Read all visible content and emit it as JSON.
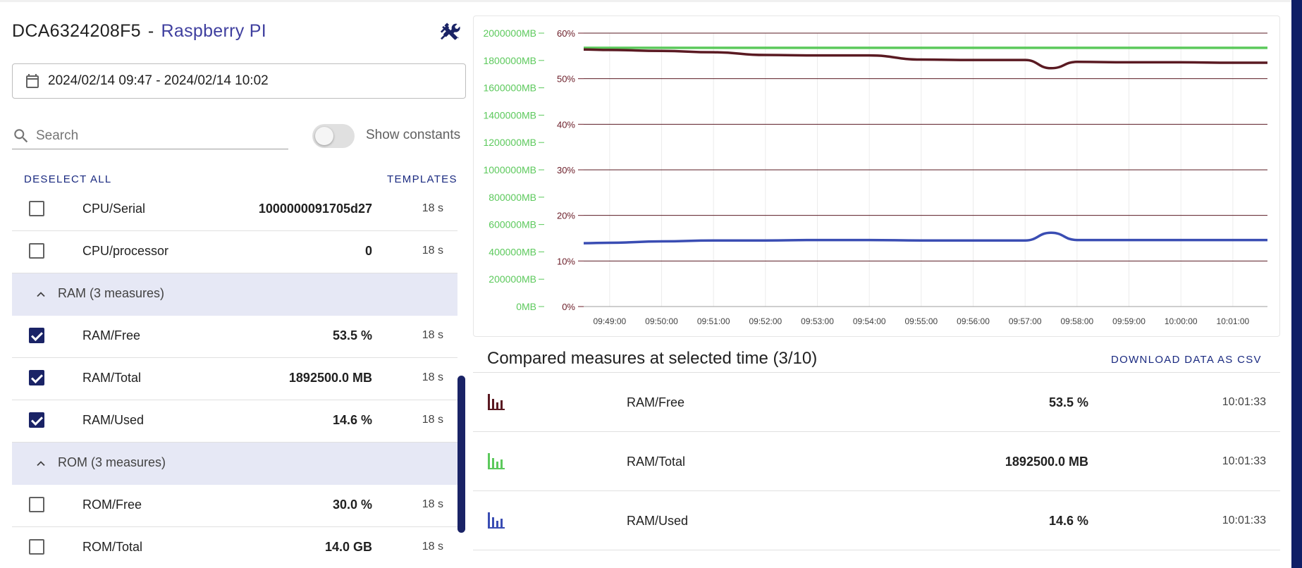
{
  "header": {
    "device_id": "DCA6324208F5",
    "separator": "-",
    "device_name": "Raspberry PI"
  },
  "date_range": {
    "value": "2024/02/14 09:47 - 2024/02/14 10:02"
  },
  "search": {
    "placeholder": "Search",
    "value": ""
  },
  "show_constants": {
    "label": "Show constants",
    "enabled": false
  },
  "actions": {
    "deselect_all": "DESELECT ALL",
    "templates": "TEMPLATES",
    "download_csv": "DOWNLOAD DATA AS CSV"
  },
  "measures": [
    {
      "type": "item",
      "name": "CPU/Serial",
      "value": "1000000091705d27",
      "age": "18 s",
      "checked": false
    },
    {
      "type": "item",
      "name": "CPU/processor",
      "value": "0",
      "age": "18 s",
      "checked": false
    },
    {
      "type": "group",
      "label": "RAM (3 measures)",
      "expanded": true
    },
    {
      "type": "item",
      "name": "RAM/Free",
      "value": "53.5 %",
      "age": "18 s",
      "checked": true
    },
    {
      "type": "item",
      "name": "RAM/Total",
      "value": "1892500.0 MB",
      "age": "18 s",
      "checked": true
    },
    {
      "type": "item",
      "name": "RAM/Used",
      "value": "14.6 %",
      "age": "18 s",
      "checked": true
    },
    {
      "type": "group",
      "label": "ROM (3 measures)",
      "expanded": true
    },
    {
      "type": "item",
      "name": "ROM/Free",
      "value": "30.0 %",
      "age": "18 s",
      "checked": false
    },
    {
      "type": "item",
      "name": "ROM/Total",
      "value": "14.0 GB",
      "age": "18 s",
      "checked": false
    }
  ],
  "chart_data": {
    "type": "line",
    "title": "",
    "xlabel": "",
    "x_ticks": [
      "09:49:00",
      "09:50:00",
      "09:51:00",
      "09:52:00",
      "09:53:00",
      "09:54:00",
      "09:55:00",
      "09:56:00",
      "09:57:00",
      "09:58:00",
      "09:59:00",
      "10:00:00",
      "10:01:00"
    ],
    "x_range": [
      "09:48:30",
      "10:01:40"
    ],
    "y_left": {
      "ticks": [
        "0MB",
        "200000MB",
        "400000MB",
        "600000MB",
        "800000MB",
        "1000000MB",
        "1200000MB",
        "1400000MB",
        "1600000MB",
        "1800000MB",
        "2000000MB"
      ],
      "range": [
        0,
        2000000
      ],
      "unit": "MB",
      "color": "#5cc95c"
    },
    "y_right": {
      "ticks": [
        "0%",
        "10%",
        "20%",
        "30%",
        "40%",
        "50%",
        "60%"
      ],
      "range": [
        0,
        60
      ],
      "unit": "%",
      "color": "#6b1d28"
    },
    "grid": true,
    "series": [
      {
        "name": "RAM/Total",
        "axis": "left",
        "color": "#5cc95c",
        "x": [
          "09:48:30",
          "09:49:00",
          "09:50:00",
          "09:51:00",
          "09:52:00",
          "09:53:00",
          "09:54:00",
          "09:55:00",
          "09:56:00",
          "09:57:00",
          "09:57:30",
          "09:58:00",
          "09:59:00",
          "10:00:00",
          "10:01:00",
          "10:01:40"
        ],
        "values": [
          1892500,
          1892500,
          1892500,
          1892500,
          1892500,
          1892500,
          1892500,
          1892500,
          1892500,
          1892500,
          1892500,
          1892500,
          1892500,
          1892500,
          1892500,
          1892500
        ]
      },
      {
        "name": "RAM/Free",
        "axis": "right",
        "color": "#5a1a22",
        "x": [
          "09:48:30",
          "09:49:00",
          "09:50:00",
          "09:51:00",
          "09:52:00",
          "09:53:00",
          "09:54:00",
          "09:55:00",
          "09:56:00",
          "09:57:00",
          "09:57:30",
          "09:58:00",
          "09:59:00",
          "10:00:00",
          "10:01:00",
          "10:01:40"
        ],
        "values": [
          56.4,
          56.3,
          56.1,
          55.8,
          55.2,
          55.1,
          55.1,
          54.2,
          54.1,
          54.1,
          52.3,
          53.7,
          53.6,
          53.6,
          53.5,
          53.5
        ]
      },
      {
        "name": "RAM/Used",
        "axis": "right",
        "color": "#3a4db3",
        "x": [
          "09:48:30",
          "09:49:00",
          "09:50:00",
          "09:51:00",
          "09:52:00",
          "09:53:00",
          "09:54:00",
          "09:55:00",
          "09:56:00",
          "09:57:00",
          "09:57:30",
          "09:58:00",
          "09:59:00",
          "10:00:00",
          "10:01:00",
          "10:01:40"
        ],
        "values": [
          13.9,
          14.0,
          14.3,
          14.5,
          14.5,
          14.6,
          14.6,
          14.5,
          14.5,
          14.5,
          16.2,
          14.6,
          14.6,
          14.6,
          14.6,
          14.6
        ]
      }
    ]
  },
  "compared": {
    "title": "Compared measures at selected time (3/10)",
    "rows": [
      {
        "name": "RAM/Free",
        "value": "53.5 %",
        "time": "10:01:33",
        "color": "#5a1a22"
      },
      {
        "name": "RAM/Total",
        "value": "1892500.0 MB",
        "time": "10:01:33",
        "color": "#5cc95c"
      },
      {
        "name": "RAM/Used",
        "value": "14.6 %",
        "time": "10:01:33",
        "color": "#3a4db3"
      }
    ]
  },
  "icons": {
    "tools": "tools-icon",
    "calendar": "calendar-icon",
    "search": "search-icon",
    "chevron": "chevron-up-icon",
    "bar_chart": "bar-chart-icon"
  },
  "colors": {
    "accent": "#1a2366",
    "device_name": "#3f3f9f",
    "group_bg": "#e6e8f5",
    "edge": "#0f1f66"
  }
}
